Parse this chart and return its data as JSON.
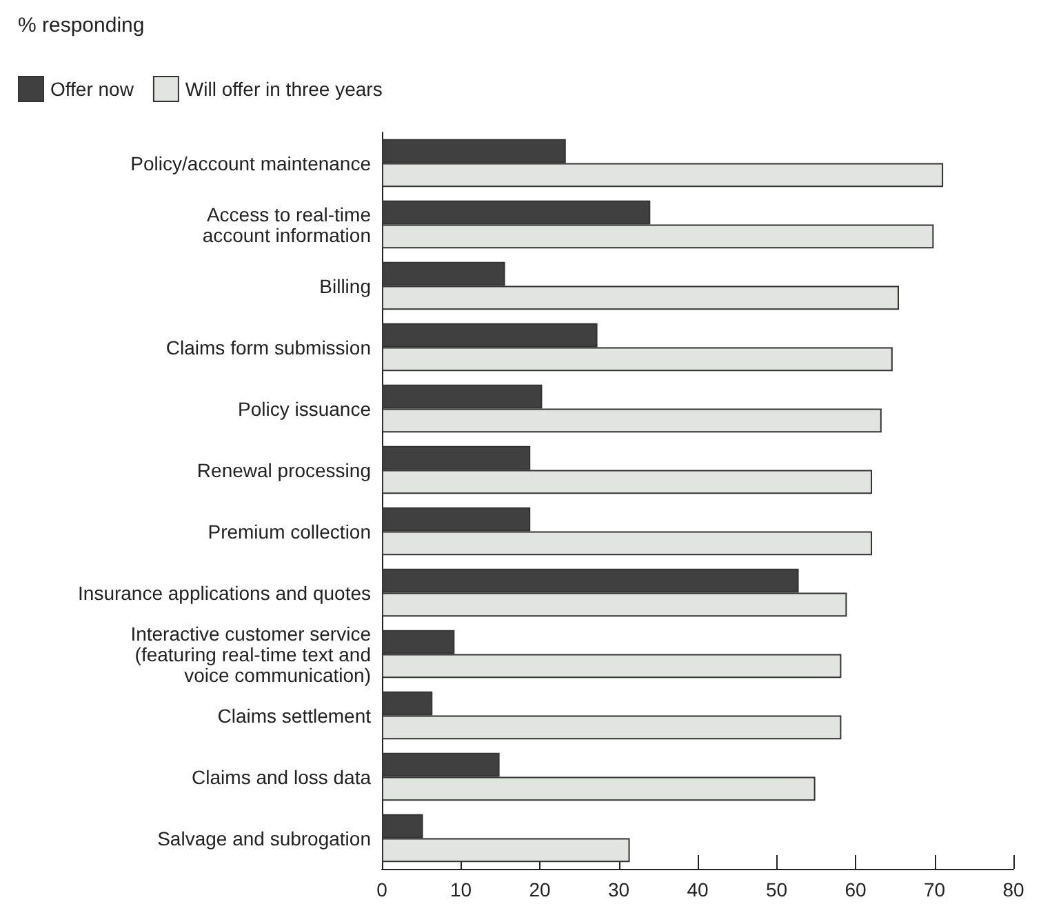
{
  "chart_data": {
    "type": "bar",
    "orientation": "horizontal",
    "subtitle": "% responding",
    "categories": [
      "Policy/account maintenance",
      "Access to real-time\naccount information",
      "Billing",
      "Claims form submission",
      "Policy issuance",
      "Renewal processing",
      "Premium collection",
      "Insurance applications and quotes",
      "Interactive customer service\n(featuring real-time text and\nvoice communication)",
      "Claims settlement",
      "Claims and loss data",
      "Salvage and subrogation"
    ],
    "series": [
      {
        "name": "Offer now",
        "color": "#404040",
        "values": [
          23.3,
          34.0,
          15.6,
          27.3,
          20.3,
          18.8,
          18.8,
          52.8,
          9.2,
          6.4,
          14.9,
          5.2
        ]
      },
      {
        "name": "Will offer in three years",
        "color": "#e2e4e1",
        "values": [
          71.1,
          69.9,
          65.5,
          64.7,
          63.3,
          62.1,
          62.1,
          58.9,
          58.2,
          58.2,
          54.9,
          31.4
        ]
      }
    ],
    "xlim": [
      0,
      80
    ],
    "xticks": [
      0,
      10,
      20,
      30,
      40,
      50,
      60,
      70,
      80
    ],
    "grid": false,
    "legend": "top left"
  }
}
